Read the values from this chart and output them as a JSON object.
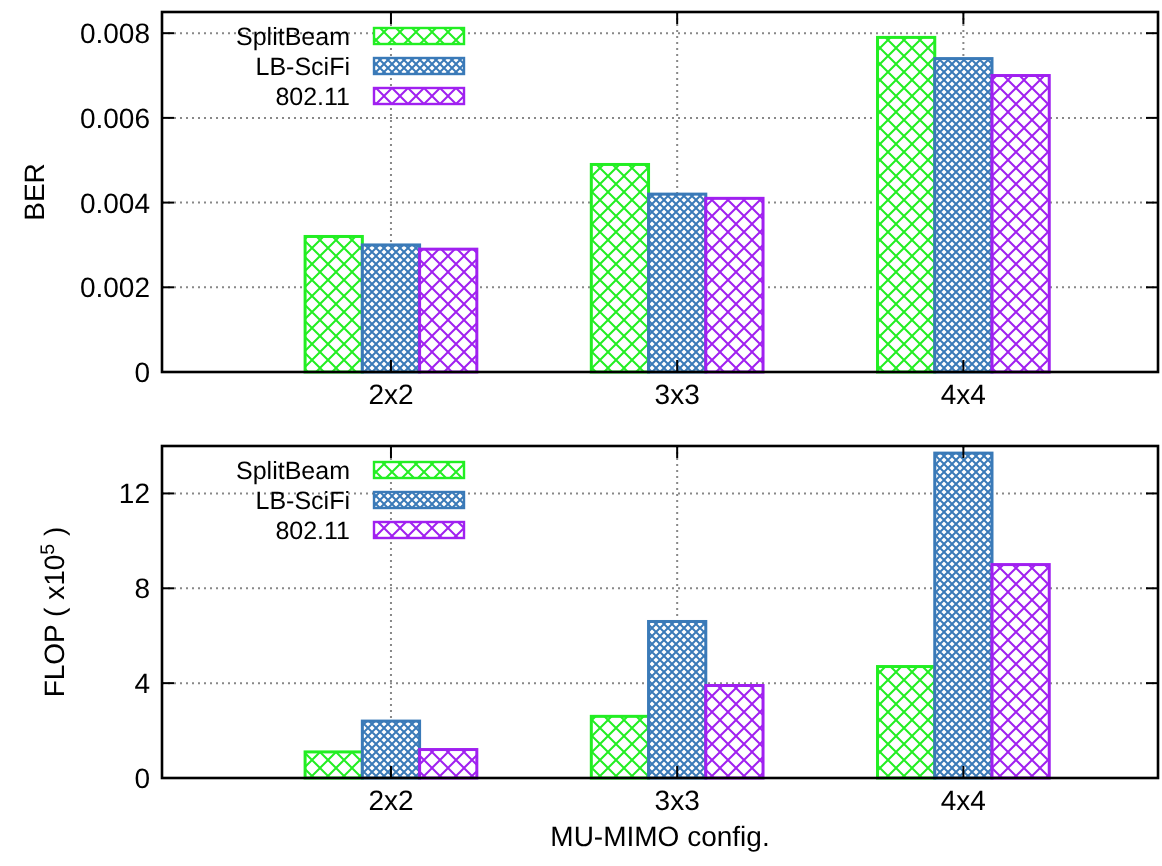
{
  "chart_data": [
    {
      "type": "bar",
      "ylabel": "BER",
      "categories": [
        "2x2",
        "3x3",
        "4x4"
      ],
      "ylim": [
        0,
        0.0085
      ],
      "yticks": [
        0,
        0.002,
        0.004,
        0.006,
        0.008
      ],
      "grid": true,
      "legend": "top left",
      "series": [
        {
          "name": "SplitBeam",
          "color": "#22ee22",
          "values": [
            0.0032,
            0.0049,
            0.0079
          ]
        },
        {
          "name": "LB-SciFi",
          "color": "#3a7ab8",
          "values": [
            0.003,
            0.0042,
            0.0074
          ]
        },
        {
          "name": "802.11",
          "color": "#a020f0",
          "values": [
            0.0029,
            0.0041,
            0.007
          ]
        }
      ]
    },
    {
      "type": "bar",
      "ylabel": "FLOP ( x10$^{5}$ )",
      "xlabel": "MU-MIMO config.",
      "categories": [
        "2x2",
        "3x3",
        "4x4"
      ],
      "ylim": [
        0,
        14
      ],
      "yticks": [
        0,
        4,
        8,
        12
      ],
      "grid": true,
      "legend": "top left",
      "series": [
        {
          "name": "SplitBeam",
          "color": "#22ee22",
          "values": [
            1.1,
            2.6,
            4.7
          ]
        },
        {
          "name": "LB-SciFi",
          "color": "#3a7ab8",
          "values": [
            2.4,
            6.6,
            13.7
          ]
        },
        {
          "name": "802.11",
          "color": "#a020f0",
          "values": [
            1.2,
            3.9,
            9.0
          ]
        }
      ]
    }
  ]
}
